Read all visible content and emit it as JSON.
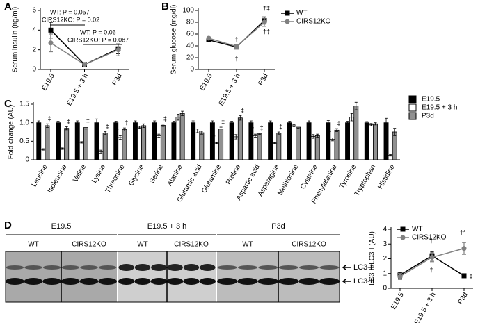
{
  "chart_data": [
    {
      "type": "line",
      "panel": "A",
      "ylabel": "Serum insulin (ng/ml)",
      "categories": [
        "E19.5",
        "E19.5 + 3 h",
        "P3d"
      ],
      "ylim": [
        0,
        6
      ],
      "yticks": [
        0,
        2,
        4,
        6
      ],
      "series": [
        {
          "color": "#000000",
          "marker": "square",
          "values": [
            4.0,
            0.5,
            2.1
          ],
          "errors": [
            0.8,
            0.1,
            0.5
          ]
        },
        {
          "color": "#808080",
          "marker": "circle",
          "values": [
            2.7,
            0.5,
            2.0
          ],
          "errors": [
            0.9,
            0.1,
            0.6
          ]
        }
      ],
      "annotations": [
        "WT: P = 0.057",
        "CIRS12KO: P = 0.02",
        "WT: P = 0.06",
        "CIRS12KO: P = 0.087"
      ]
    },
    {
      "type": "line",
      "panel": "B",
      "ylabel": "Serum glucose (mg/dl)",
      "categories": [
        "E19.5",
        "E19.5 + 3 h",
        "P3d"
      ],
      "ylim": [
        0,
        100
      ],
      "yticks": [
        0,
        20,
        40,
        60,
        80,
        100
      ],
      "series": [
        {
          "name": "WT",
          "color": "#000000",
          "marker": "square",
          "values": [
            50,
            38,
            83
          ],
          "errors": [
            2,
            3,
            6
          ]
        },
        {
          "name": "CIRS12KO",
          "color": "#808080",
          "marker": "circle",
          "values": [
            53,
            39,
            80
          ],
          "errors": [
            2,
            3,
            7
          ]
        }
      ],
      "legend": "top-right",
      "annotations": [
        "†",
        "†",
        "†‡",
        "†‡"
      ]
    },
    {
      "type": "bar",
      "panel": "C",
      "ylabel": "Fold change (AU)",
      "categories": [
        "Leucine",
        "Isoleucine",
        "Valine",
        "Lysine",
        "Threonine",
        "Glycine",
        "Serine",
        "Alanine",
        "Glutamic acid",
        "Glutamine",
        "Proline",
        "Aspartic acid",
        "Asparagine",
        "Methionine",
        "Cysteine",
        "Phenylalanine",
        "Tyrosine",
        "Tryptophan",
        "Histidine"
      ],
      "ylim": [
        0,
        1.5
      ],
      "yticks": [
        0,
        0.5,
        {
          "value": 1,
          "label": "1.0"
        },
        1.5
      ],
      "series": [
        {
          "name": "E19.5",
          "color": "#000000",
          "values": [
            1.0,
            1.0,
            1.0,
            1.0,
            1.0,
            1.0,
            1.0,
            1.0,
            1.0,
            1.0,
            1.0,
            1.0,
            1.0,
            1.0,
            1.0,
            1.0,
            1.0,
            1.0,
            1.0
          ],
          "errors": [
            0.05,
            0.04,
            0.05,
            0.1,
            0.04,
            0.05,
            0.05,
            0.04,
            0.05,
            0.05,
            0.04,
            0.05,
            0.05,
            0.04,
            0.05,
            0.06,
            0.04,
            0.03,
            0.12
          ]
        },
        {
          "name": "E19.5 + 3 h",
          "color": "#ffffff",
          "values": [
            0.28,
            0.3,
            0.47,
            0.22,
            0.6,
            0.88,
            0.65,
            1.15,
            0.78,
            0.45,
            0.62,
            0.65,
            0.45,
            0.92,
            0.63,
            0.55,
            1.15,
            0.95,
            0.12
          ],
          "errors": [
            0.02,
            0.02,
            0.02,
            0.04,
            0.05,
            0.03,
            0.04,
            0.08,
            0.05,
            0.02,
            0.06,
            0.04,
            0.02,
            0.03,
            0.05,
            0.04,
            0.1,
            0.03,
            0.02
          ],
          "marks": [
            null,
            null,
            null,
            "†",
            "†",
            null,
            null,
            null,
            null,
            "†",
            null,
            "†",
            "†",
            null,
            null,
            "†",
            null,
            null,
            null
          ]
        },
        {
          "name": "P3d",
          "color": "#909090",
          "values": [
            0.92,
            0.85,
            0.87,
            0.72,
            0.82,
            0.92,
            0.93,
            1.25,
            0.73,
            0.83,
            1.13,
            0.7,
            0.72,
            0.88,
            0.65,
            0.8,
            1.45,
            0.97,
            0.75
          ],
          "errors": [
            0.05,
            0.04,
            0.04,
            0.04,
            0.04,
            0.05,
            0.03,
            0.06,
            0.04,
            0.05,
            0.06,
            0.02,
            0.03,
            0.03,
            0.04,
            0.04,
            0.1,
            0.03,
            0.1
          ],
          "marks": [
            "‡",
            "‡",
            "‡",
            "‡",
            "‡",
            null,
            "‡",
            null,
            null,
            "‡",
            "‡",
            "‡",
            "‡",
            null,
            null,
            "‡",
            null,
            null,
            null
          ]
        }
      ],
      "legend": "top-right"
    },
    {
      "type": "line",
      "panel": "D",
      "ylabel": "LC3-II/LC3-I (AU)",
      "categories": [
        "E19.5",
        "E19.5 + 3 h",
        "P3d"
      ],
      "ylim": [
        0,
        4
      ],
      "yticks": [
        0,
        1,
        2,
        3,
        4
      ],
      "series": [
        {
          "name": "WT",
          "color": "#000000",
          "marker": "square",
          "values": [
            0.9,
            2.2,
            0.85
          ],
          "errors": [
            0.2,
            0.3,
            0.08
          ]
        },
        {
          "name": "CIRS12KO",
          "color": "#808080",
          "marker": "circle",
          "values": [
            0.8,
            2.1,
            2.7
          ],
          "errors": [
            0.2,
            0.3,
            0.4
          ]
        }
      ],
      "legend": "top-left",
      "annotations": [
        "†",
        "†",
        "†*",
        "‡"
      ]
    }
  ],
  "blot": {
    "groups": [
      {
        "label": "E19.5",
        "lanes": [
          "WT",
          "CIRS12KO"
        ]
      },
      {
        "label": "E19.5 + 3 h",
        "lanes": [
          "WT",
          "CIRS12KO"
        ]
      },
      {
        "label": "P3d",
        "lanes": [
          "WT",
          "CIRS12KO"
        ]
      }
    ],
    "bands": [
      "LC3-I",
      "LC3-II"
    ]
  }
}
